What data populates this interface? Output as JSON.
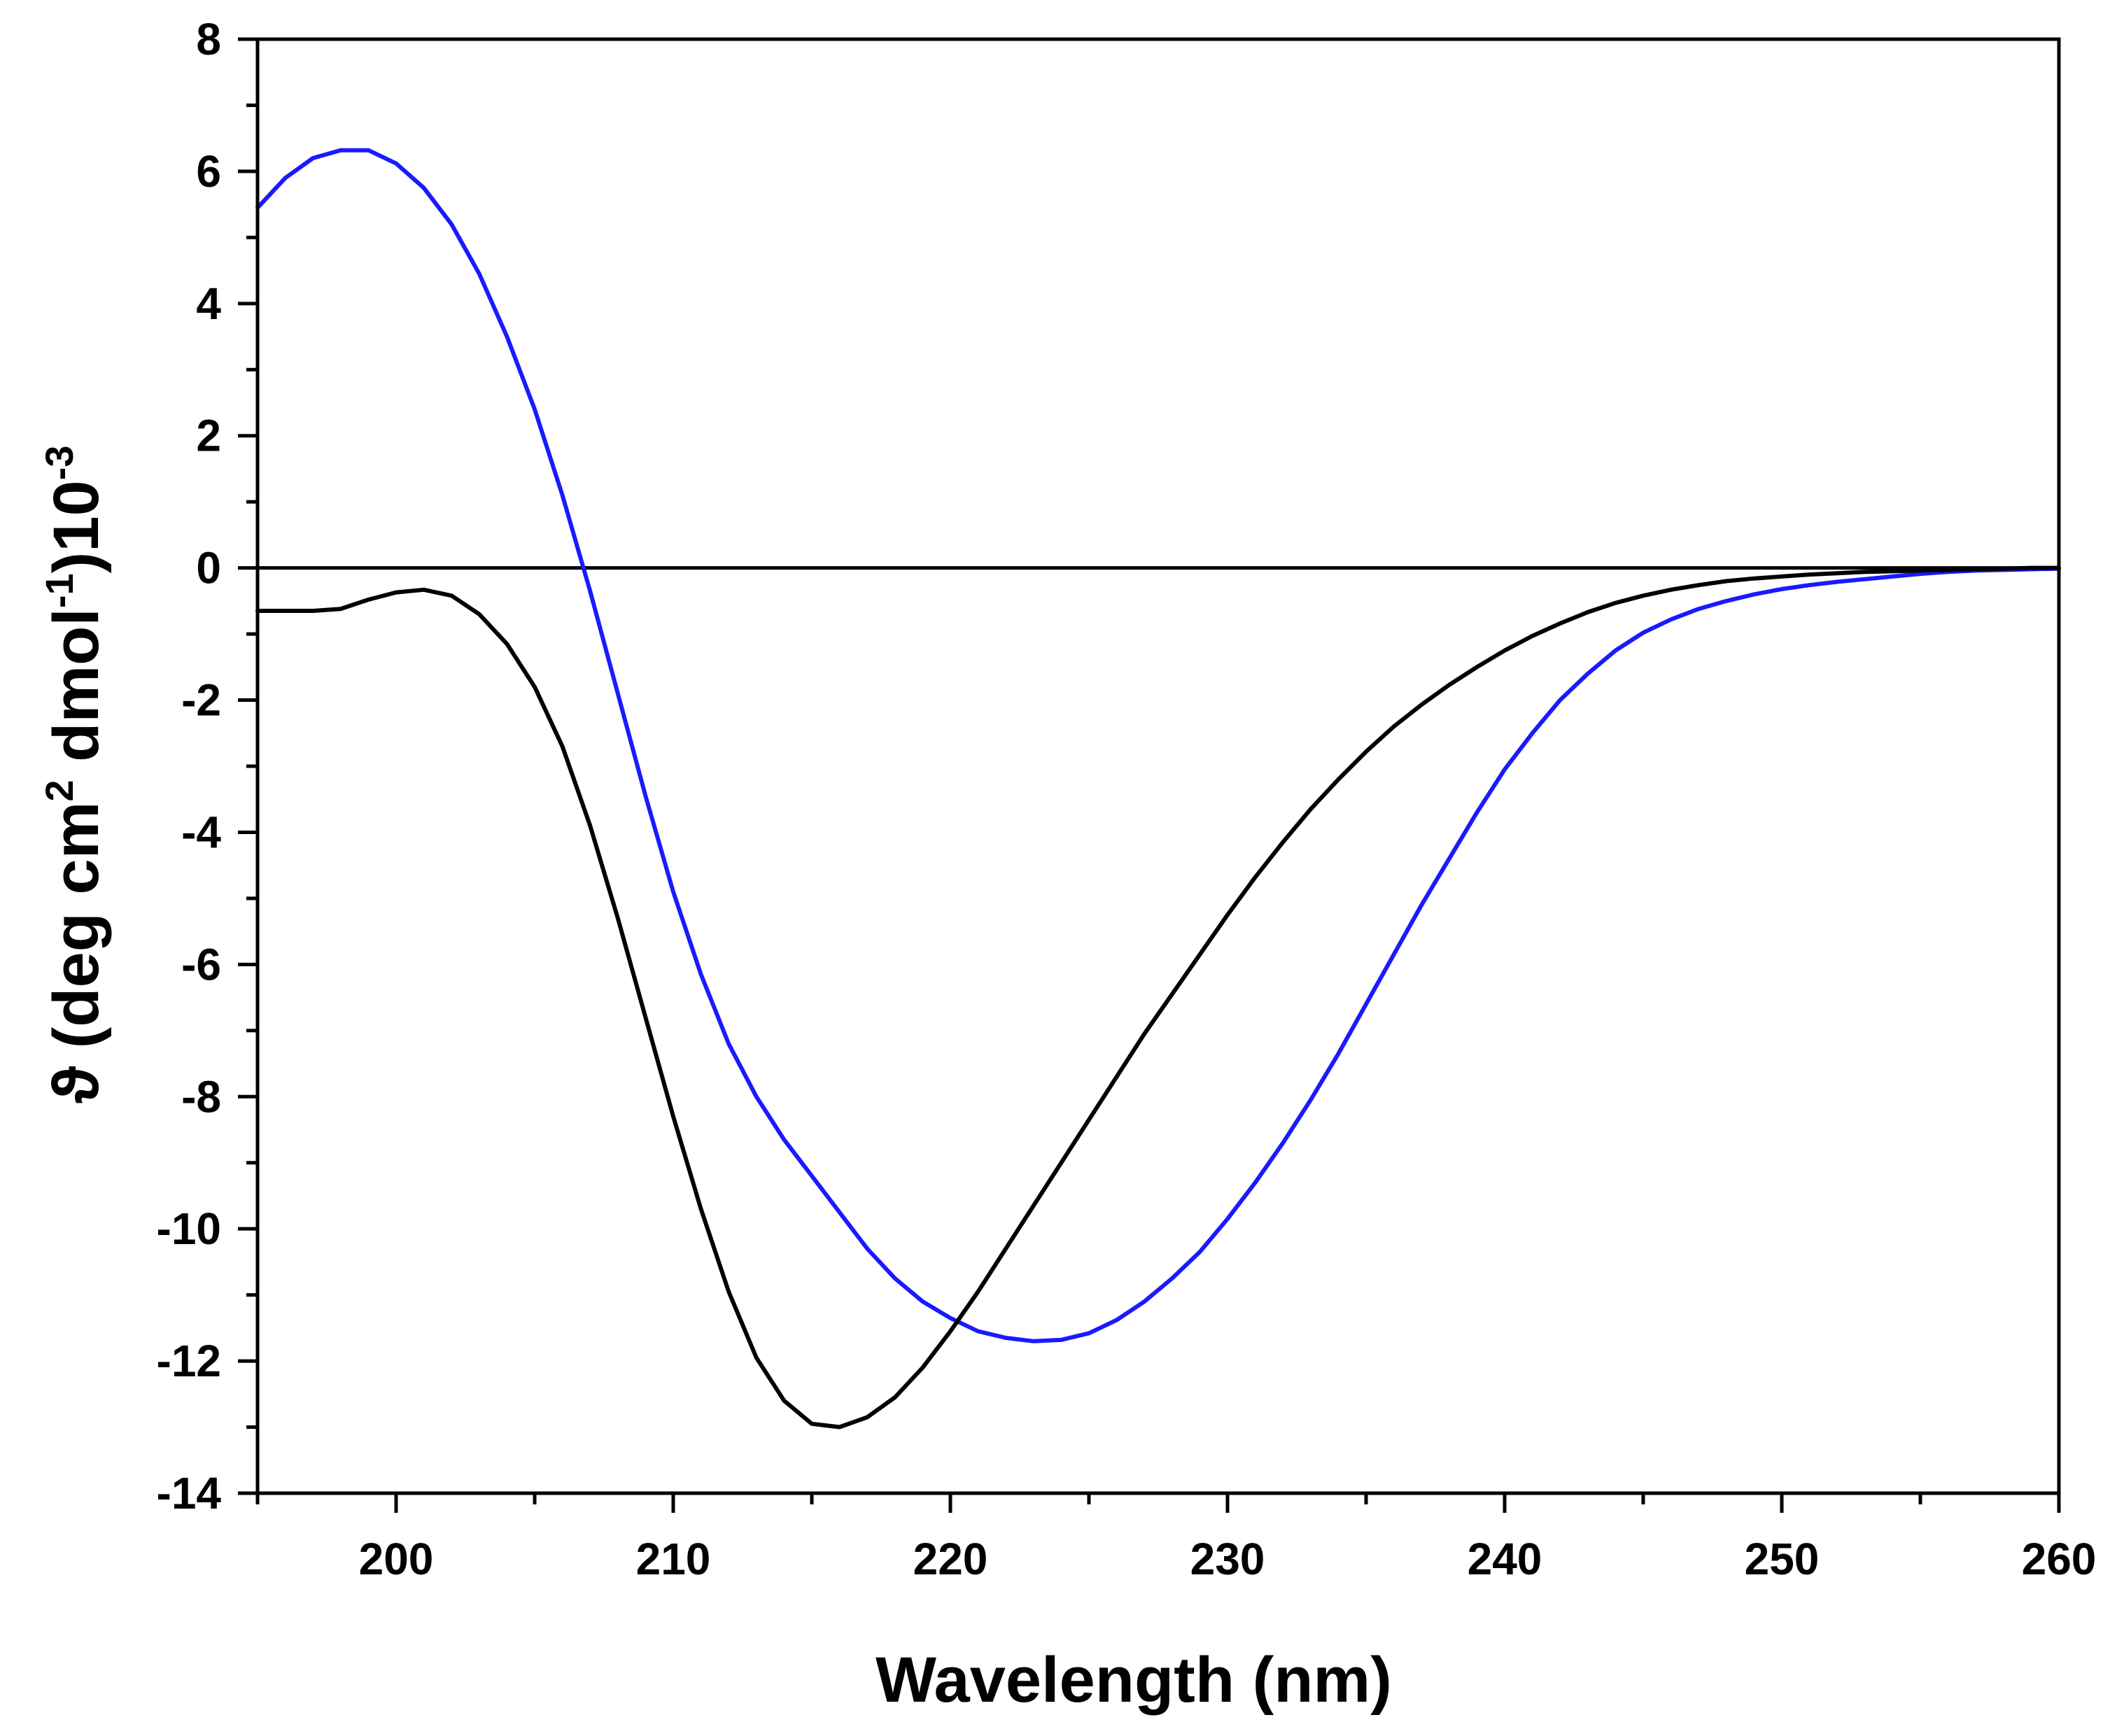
{
  "chart_data": {
    "type": "line",
    "title": "",
    "xlabel": "Wavelength (nm)",
    "ylabel": {
      "main": "ϑ (deg cm",
      "sup1": "2",
      "mid": " dmol",
      "sup2": "-1",
      "end": ")10",
      "sup3": "-3"
    },
    "xlim": [
      195,
      260
    ],
    "ylim": [
      -14,
      8
    ],
    "xticks": [
      200,
      210,
      220,
      230,
      240,
      250,
      260
    ],
    "yticks": [
      8,
      6,
      4,
      2,
      0,
      -2,
      -4,
      -6,
      -8,
      -10,
      -12,
      -14
    ],
    "zero_line": true,
    "grid": false,
    "legend": "none",
    "series": [
      {
        "color": "#1a1aff",
        "x": [
          195,
          196,
          197,
          198,
          199,
          200,
          201,
          202,
          203,
          204,
          205,
          206,
          207,
          208,
          209,
          210,
          211,
          212,
          213,
          214,
          215,
          216,
          217,
          218,
          219,
          220,
          221,
          222,
          223,
          224,
          225,
          226,
          227,
          228,
          229,
          230,
          231,
          232,
          233,
          234,
          235,
          236,
          237,
          238,
          239,
          240,
          241,
          242,
          243,
          244,
          245,
          246,
          247,
          248,
          249,
          250,
          251,
          252,
          253,
          254,
          255,
          256,
          257,
          258,
          259,
          260
        ],
        "values": [
          5.45,
          5.9,
          6.2,
          6.32,
          6.32,
          6.12,
          5.75,
          5.2,
          4.45,
          3.5,
          2.4,
          1.1,
          -0.35,
          -1.9,
          -3.45,
          -4.9,
          -6.15,
          -7.2,
          -8.0,
          -8.65,
          -9.2,
          -9.75,
          -10.3,
          -10.75,
          -11.1,
          -11.35,
          -11.55,
          -11.65,
          -11.7,
          -11.68,
          -11.58,
          -11.38,
          -11.1,
          -10.75,
          -10.35,
          -9.85,
          -9.3,
          -8.7,
          -8.05,
          -7.35,
          -6.6,
          -5.85,
          -5.1,
          -4.4,
          -3.7,
          -3.05,
          -2.5,
          -2.0,
          -1.6,
          -1.25,
          -0.98,
          -0.78,
          -0.62,
          -0.5,
          -0.4,
          -0.32,
          -0.26,
          -0.21,
          -0.17,
          -0.13,
          -0.09,
          -0.06,
          -0.04,
          -0.03,
          -0.02,
          -0.01
        ]
      },
      {
        "color": "#000000",
        "x": [
          195,
          196,
          197,
          198,
          199,
          200,
          201,
          202,
          203,
          204,
          205,
          206,
          207,
          208,
          209,
          210,
          211,
          212,
          213,
          214,
          215,
          216,
          217,
          218,
          219,
          220,
          221,
          222,
          223,
          224,
          225,
          226,
          227,
          228,
          229,
          230,
          231,
          232,
          233,
          234,
          235,
          236,
          237,
          238,
          239,
          240,
          241,
          242,
          243,
          244,
          245,
          246,
          247,
          248,
          249,
          250,
          251,
          252,
          253,
          254,
          255,
          256,
          257,
          258,
          259,
          260
        ],
        "values": [
          -0.65,
          -0.65,
          -0.65,
          -0.62,
          -0.48,
          -0.37,
          -0.33,
          -0.42,
          -0.7,
          -1.15,
          -1.8,
          -2.7,
          -3.9,
          -5.3,
          -6.8,
          -8.3,
          -9.7,
          -10.95,
          -11.95,
          -12.6,
          -12.95,
          -13.0,
          -12.85,
          -12.55,
          -12.1,
          -11.55,
          -10.95,
          -10.3,
          -9.65,
          -9.0,
          -8.35,
          -7.7,
          -7.05,
          -6.45,
          -5.85,
          -5.25,
          -4.68,
          -4.15,
          -3.65,
          -3.2,
          -2.78,
          -2.4,
          -2.07,
          -1.77,
          -1.5,
          -1.25,
          -1.03,
          -0.84,
          -0.67,
          -0.53,
          -0.42,
          -0.33,
          -0.26,
          -0.2,
          -0.16,
          -0.13,
          -0.1,
          -0.08,
          -0.06,
          -0.05,
          -0.04,
          -0.03,
          -0.02,
          -0.01,
          0.0,
          0.0
        ]
      }
    ]
  }
}
